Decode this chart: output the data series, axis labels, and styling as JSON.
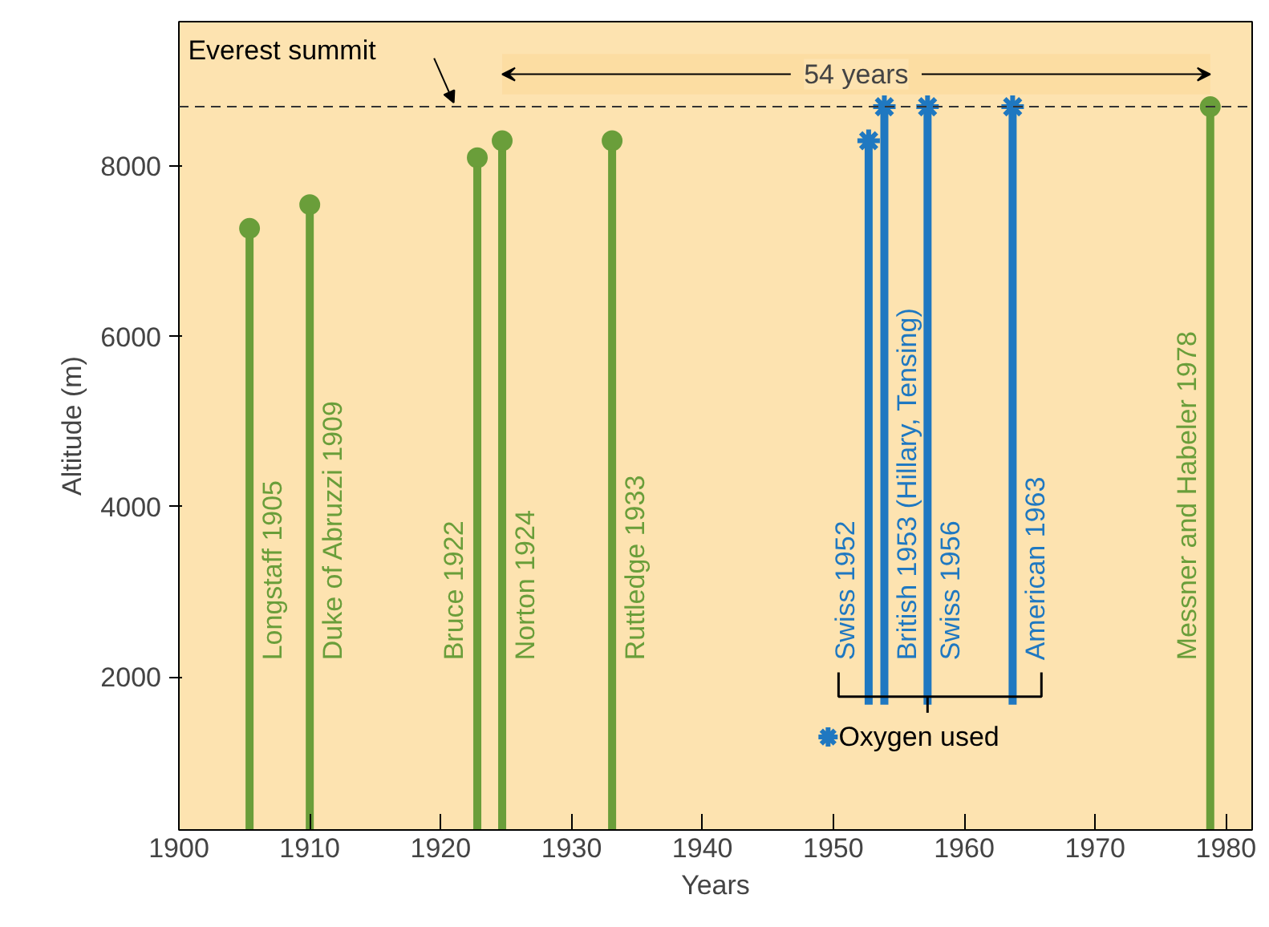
{
  "chart_data": {
    "type": "lollipop",
    "xlabel": "Years",
    "ylabel": "Altitude (m)",
    "xlim": [
      1900,
      1982
    ],
    "ylim": [
      200,
      9700
    ],
    "xticks": [
      1900,
      1910,
      1920,
      1930,
      1940,
      1950,
      1960,
      1970,
      1980
    ],
    "yticks": [
      2000,
      4000,
      6000,
      8000
    ],
    "grid": false,
    "legend": "bottom",
    "series": [
      {
        "color": "#6a9e3a",
        "marker": "circle",
        "x": [
          1905.4,
          1910,
          1922.8,
          1924.7,
          1933.1,
          1978.8
        ],
        "values": [
          7270,
          7550,
          8100,
          8300,
          8300,
          8700
        ]
      },
      {
        "name": "Oxygen used",
        "color": "#1f78c1",
        "marker": "cross",
        "x": [
          1952.7,
          1953.9,
          1957.2,
          1963.7
        ],
        "values": [
          8300,
          8700,
          8700,
          8700
        ]
      }
    ],
    "ref_lines": [
      {
        "axis": "y",
        "value": 8700,
        "label": "Everest summit",
        "color": "#333333",
        "line_style": "dashed"
      }
    ],
    "bands": [
      {
        "axis": "x",
        "from": 1924.7,
        "to": 1978.8,
        "label": "54 years"
      }
    ],
    "annotations": [
      "Longstaff 1905",
      "Duke of Abruzzi 1909",
      "Bruce 1922",
      "Norton 1924",
      "Ruttledge 1933",
      "Swiss 1952",
      "British 1953 (Hillary, Tensing)",
      "Swiss 1956",
      "American 1963",
      "Messner and Habeler 1978"
    ]
  }
}
